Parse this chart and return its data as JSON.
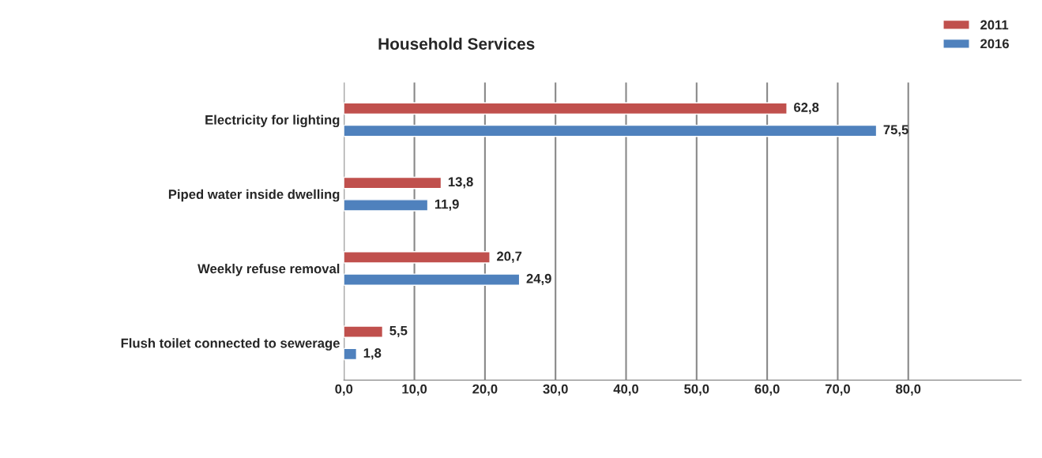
{
  "chart_data": {
    "type": "bar",
    "orientation": "horizontal",
    "title": "Household Services",
    "categories": [
      "Electricity for lighting",
      "Piped water inside dwelling",
      "Weekly refuse removal",
      "Flush toilet connected to sewerage"
    ],
    "series": [
      {
        "name": "2011",
        "color": "#c0504d",
        "values": [
          62.8,
          13.8,
          20.7,
          5.5
        ],
        "value_labels": [
          "62,8",
          "13,8",
          "20,7",
          "5,5"
        ]
      },
      {
        "name": "2016",
        "color": "#4f81bd",
        "values": [
          75.5,
          11.9,
          24.9,
          1.8
        ],
        "value_labels": [
          "75,5",
          "11,9",
          "24,9",
          "1,8"
        ]
      }
    ],
    "xlim": [
      0,
      96
    ],
    "xticks": [
      {
        "value": 0,
        "label": "0,0"
      },
      {
        "value": 10,
        "label": "10,0"
      },
      {
        "value": 20,
        "label": "20,0"
      },
      {
        "value": 30,
        "label": "30,0"
      },
      {
        "value": 40,
        "label": "40,0"
      },
      {
        "value": 50,
        "label": "50,0"
      },
      {
        "value": 60,
        "label": "60,0"
      },
      {
        "value": 70,
        "label": "70,0"
      },
      {
        "value": 80,
        "label": "80,0"
      }
    ],
    "grid": "x",
    "legend": "top right"
  }
}
